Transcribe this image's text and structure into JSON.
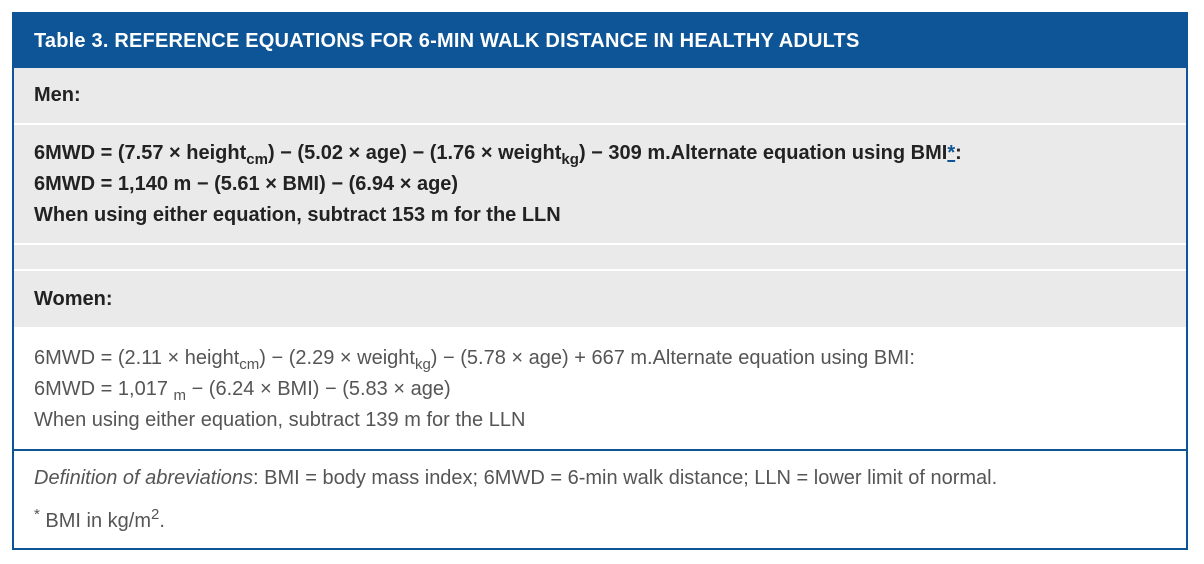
{
  "table": {
    "title": "Table 3. REFERENCE  EQUATIONS  FOR  6-MIN  WALK  DISTANCE IN  HEALTHY  ADULTS",
    "men": {
      "heading": "Men:",
      "line1": {
        "p1": "6MWD = (7.57 × height",
        "sub1": "cm",
        "p2": ") − (5.02 × age) − (1.76 × weight",
        "sub2": "kg",
        "p3": ") − 309 m.Alternate equation using BMI",
        "star": "*",
        "p4": ":"
      },
      "line2": "6MWD = 1,140 m − (5.61 × BMI) − (6.94 × age)",
      "line3": "When using either equation, subtract 153 m for the LLN"
    },
    "women": {
      "heading": "Women:",
      "line1": {
        "p1": "6MWD = (2.11 × height",
        "sub1": "cm",
        "p2": ") − (2.29 × weight",
        "sub2": "kg",
        "p3": ") − (5.78 × age) + 667 m.Alternate equation using BMI:"
      },
      "line2": {
        "p1": "6MWD = 1,017 ",
        "sub1": "m",
        "p2": " − (6.24 × BMI) − (5.83 × age)"
      },
      "line3": "When using either equation, subtract 139 m for the LLN"
    },
    "footnotes": {
      "abbrev_label": "Definition of abreviations",
      "abbrev_text": ": BMI = body mass index; 6MWD = 6-min walk distance; LLN = lower limit of normal.",
      "bmi_star": "*",
      "bmi_text": " BMI in kg/m",
      "bmi_sup": "2",
      "bmi_end": "."
    }
  },
  "colors": {
    "header_blue": "#0d5596",
    "row_gray": "#eaeaea"
  }
}
